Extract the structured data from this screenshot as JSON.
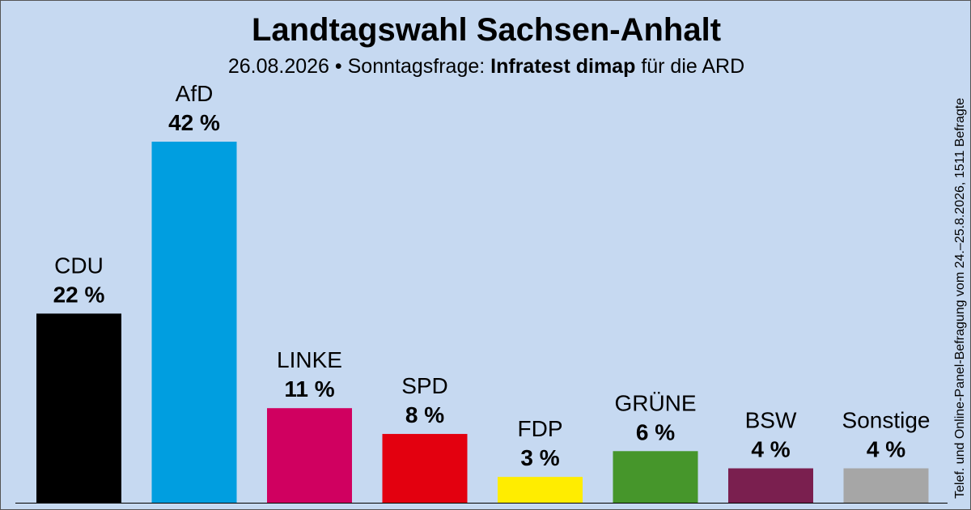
{
  "title": "Landtagswahl Sachsen-Anhalt",
  "subtitle": {
    "date": "26.08.2026",
    "separator": "•",
    "label": "Sonntagsfrage:",
    "institute": "Infratest dimap",
    "suffix": "für die ARD"
  },
  "side_note": "Telef. und Online-Panel-Befragung vom 24.–25.8.2026, 1511 Befragte",
  "chart_data": {
    "type": "bar",
    "title": "Landtagswahl Sachsen-Anhalt",
    "xlabel": "",
    "ylabel": "",
    "unit": "%",
    "ylim": [
      0,
      42
    ],
    "grid": false,
    "categories": [
      "CDU",
      "AfD",
      "LINKE",
      "SPD",
      "FDP",
      "GRÜNE",
      "BSW",
      "Sonstige"
    ],
    "values": [
      22,
      42,
      11,
      8,
      3,
      6,
      4,
      4
    ],
    "value_labels": [
      "22 %",
      "42 %",
      "11 %",
      "8 %",
      "3 %",
      "6 %",
      "4 %",
      "4 %"
    ],
    "colors": [
      "#000000",
      "#009ee0",
      "#d00060",
      "#e3000f",
      "#ffed00",
      "#46962b",
      "#7a1f4f",
      "#a6a6a6"
    ]
  }
}
